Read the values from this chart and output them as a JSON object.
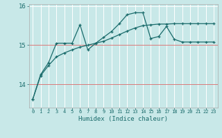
{
  "title": "",
  "xlabel": "Humidex (Indice chaleur)",
  "bg_color": "#c8e8e8",
  "line_color": "#1a6b6b",
  "grid_color": "#ffffff",
  "grid_lw": 0.7,
  "x_min": -0.5,
  "x_max": 23.5,
  "y_min": 13.4,
  "y_max": 16.05,
  "yticks": [
    14,
    15,
    16
  ],
  "ytick_labels": [
    "14",
    "15",
    "16"
  ],
  "xticks": [
    0,
    1,
    2,
    3,
    4,
    5,
    6,
    7,
    8,
    9,
    10,
    11,
    12,
    13,
    14,
    15,
    16,
    17,
    18,
    19,
    20,
    21,
    22,
    23
  ],
  "smooth_y": [
    13.62,
    14.22,
    14.48,
    14.7,
    14.8,
    14.88,
    14.95,
    15.0,
    15.05,
    15.1,
    15.18,
    15.27,
    15.36,
    15.44,
    15.5,
    15.52,
    15.54,
    15.54,
    15.55,
    15.55,
    15.55,
    15.55,
    15.55,
    15.55
  ],
  "jagged_y": [
    13.62,
    14.25,
    14.55,
    15.05,
    15.05,
    15.05,
    15.52,
    14.88,
    15.05,
    15.2,
    15.35,
    15.55,
    15.78,
    15.83,
    15.83,
    15.17,
    15.22,
    15.48,
    15.15,
    15.08,
    15.08,
    15.08,
    15.08,
    15.08
  ]
}
